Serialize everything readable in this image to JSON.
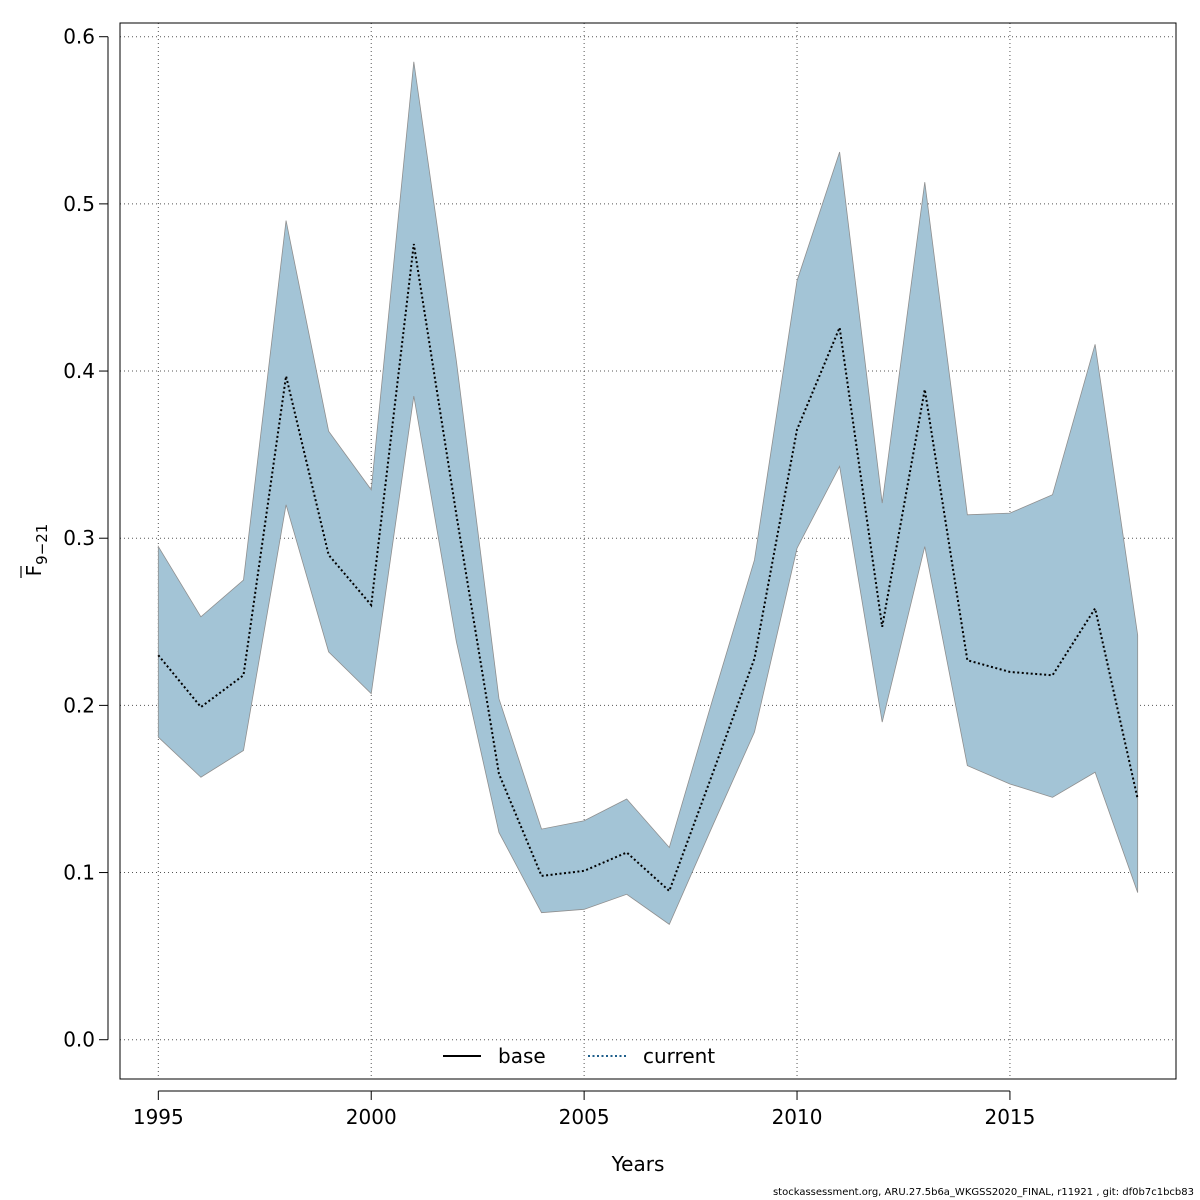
{
  "chart_data": {
    "type": "area",
    "xlabel": "Years",
    "ylabel": {
      "main": "F",
      "subscript": "9−21",
      "overline": true
    },
    "xlim": [
      1994.1,
      2018.9
    ],
    "ylim": [
      -0.0235,
      0.6082
    ],
    "x_ticks": [
      1995,
      2000,
      2005,
      2010,
      2015
    ],
    "y_ticks": [
      0.0,
      0.1,
      0.2,
      0.3,
      0.4,
      0.5,
      0.6
    ],
    "y_tick_labels": [
      "0.0",
      "0.1",
      "0.2",
      "0.3",
      "0.4",
      "0.5",
      "0.6"
    ],
    "grid": true,
    "legend_position": "bottom-center",
    "x": [
      1995,
      1996,
      1997,
      1998,
      1999,
      2000,
      2001,
      2002,
      2003,
      2004,
      2005,
      2006,
      2007,
      2008,
      2009,
      2010,
      2011,
      2012,
      2013,
      2014,
      2015,
      2016,
      2017,
      2018
    ],
    "series": [
      {
        "name": "current",
        "style": "dotted",
        "color": "#000000",
        "values": [
          0.23,
          0.199,
          0.218,
          0.397,
          0.29,
          0.26,
          0.476,
          0.314,
          0.159,
          0.098,
          0.101,
          0.112,
          0.089,
          0.158,
          0.228,
          0.365,
          0.426,
          0.247,
          0.389,
          0.227,
          0.22,
          0.218,
          0.258,
          0.144
        ],
        "lower": [
          0.181,
          0.157,
          0.173,
          0.32,
          0.232,
          0.207,
          0.385,
          0.238,
          0.124,
          0.076,
          0.078,
          0.087,
          0.069,
          0.127,
          0.184,
          0.294,
          0.343,
          0.19,
          0.295,
          0.164,
          0.153,
          0.145,
          0.16,
          0.088
        ],
        "upper": [
          0.295,
          0.253,
          0.275,
          0.49,
          0.364,
          0.329,
          0.585,
          0.406,
          0.204,
          0.126,
          0.131,
          0.144,
          0.115,
          0.202,
          0.287,
          0.454,
          0.531,
          0.321,
          0.513,
          0.314,
          0.315,
          0.326,
          0.416,
          0.242
        ]
      }
    ],
    "band_color": "#a3c4d6",
    "legend": [
      {
        "label": "base",
        "style": "solid",
        "color": "#000000"
      },
      {
        "label": "current",
        "style": "dotted",
        "color": "#1f5f8b"
      }
    ]
  },
  "footer": "stockassessment.org, ARU.27.5b6a_WKGSS2020_FINAL, r11921 , git: df0b7c1bcb83"
}
